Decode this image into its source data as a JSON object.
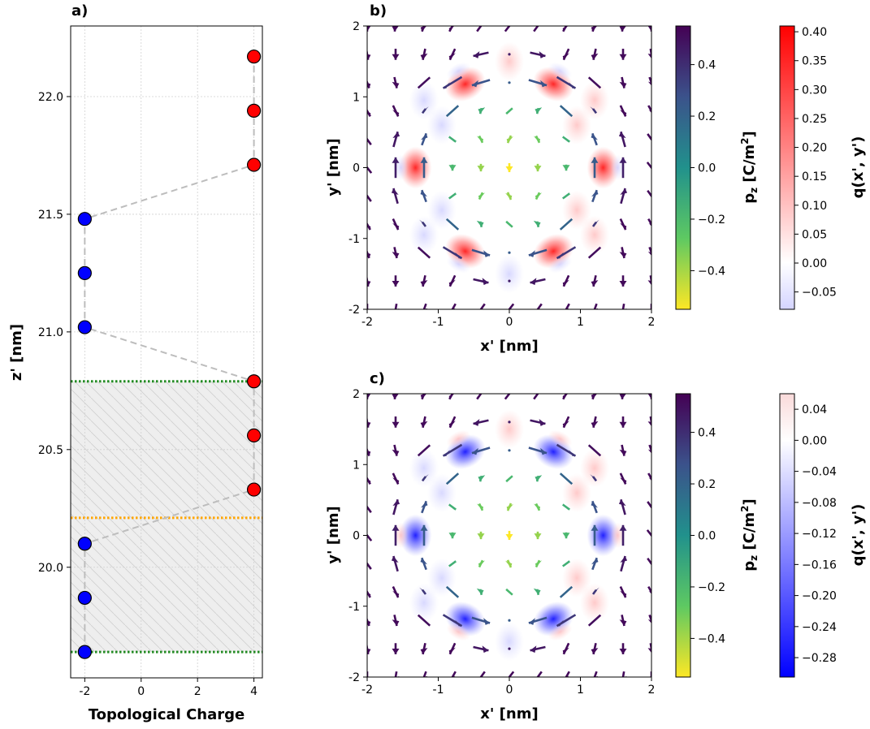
{
  "chart_data": [
    {
      "panel": "a)",
      "type": "scatter",
      "xlabel": "Topological Charge",
      "ylabel": "z' [nm]",
      "xlim": [
        -2.5,
        4.3
      ],
      "ylim": [
        19.53,
        22.3
      ],
      "xticks": [
        "-2",
        "0",
        "2",
        "4"
      ],
      "yticks": [
        "20.0",
        "20.5",
        "21.0",
        "21.5",
        "22.0"
      ],
      "grid": true,
      "points": [
        {
          "x": -2,
          "z": 19.64,
          "color": "#0000ff"
        },
        {
          "x": -2,
          "z": 19.87,
          "color": "#0000ff"
        },
        {
          "x": -2,
          "z": 20.1,
          "color": "#0000ff"
        },
        {
          "x": 4,
          "z": 20.33,
          "color": "#ff0000"
        },
        {
          "x": 4,
          "z": 20.56,
          "color": "#ff0000"
        },
        {
          "x": 4,
          "z": 20.79,
          "color": "#ff0000"
        },
        {
          "x": -2,
          "z": 21.02,
          "color": "#0000ff"
        },
        {
          "x": -2,
          "z": 21.25,
          "color": "#0000ff"
        },
        {
          "x": -2,
          "z": 21.48,
          "color": "#0000ff"
        },
        {
          "x": 4,
          "z": 21.71,
          "color": "#ff0000"
        },
        {
          "x": 4,
          "z": 21.94,
          "color": "#ff0000"
        },
        {
          "x": 4,
          "z": 22.17,
          "color": "#ff0000"
        }
      ],
      "hlines": [
        {
          "z": 20.79,
          "color": "#228b22",
          "style": "dotted"
        },
        {
          "z": 20.21,
          "color": "#ffa500",
          "style": "dotted"
        },
        {
          "z": 19.64,
          "color": "#228b22",
          "style": "dotted"
        }
      ],
      "shaded_region": [
        19.64,
        20.79
      ]
    },
    {
      "panel": "b)",
      "type": "heatmap",
      "xlabel": "x' [nm]",
      "ylabel": "y' [nm]",
      "xlim": [
        -2,
        2
      ],
      "ylim": [
        -2,
        2
      ],
      "xticks": [
        "-2",
        "-1",
        "0",
        "1",
        "2"
      ],
      "yticks": [
        "-2",
        "-1",
        "0",
        "1",
        "2"
      ],
      "quiver_colorbar": {
        "label": "p_z [C/m²]",
        "ticks": [
          "0.4",
          "0.2",
          "0.0",
          "−0.2",
          "−0.4"
        ],
        "range": [
          -0.55,
          0.55
        ]
      },
      "charge_colorbar": {
        "label": "q(x', y')",
        "ticks": [
          "0.40",
          "0.35",
          "0.30",
          "0.25",
          "0.20",
          "0.15",
          "0.10",
          "0.05",
          "0.00",
          "−0.05"
        ],
        "range": [
          -0.08,
          0.41
        ]
      },
      "features": [
        {
          "x": 0.62,
          "y": 1.18,
          "q": 0.4
        },
        {
          "x": -0.62,
          "y": 1.18,
          "q": 0.4
        },
        {
          "x": 1.32,
          "y": 0.0,
          "q": 0.4
        },
        {
          "x": -1.32,
          "y": 0.0,
          "q": 0.4
        },
        {
          "x": 0.62,
          "y": -1.18,
          "q": 0.4
        },
        {
          "x": -0.62,
          "y": -1.18,
          "q": 0.4
        }
      ]
    },
    {
      "panel": "c)",
      "type": "heatmap",
      "xlabel": "x' [nm]",
      "ylabel": "y' [nm]",
      "xlim": [
        -2,
        2
      ],
      "ylim": [
        -2,
        2
      ],
      "xticks": [
        "-2",
        "-1",
        "0",
        "1",
        "2"
      ],
      "yticks": [
        "-2",
        "-1",
        "0",
        "1",
        "2"
      ],
      "quiver_colorbar": {
        "label": "p_z [C/m²]",
        "ticks": [
          "0.4",
          "0.2",
          "0.0",
          "−0.2",
          "−0.4"
        ],
        "range": [
          -0.55,
          0.55
        ]
      },
      "charge_colorbar": {
        "label": "q(x', y')",
        "ticks": [
          "0.04",
          "0.00",
          "−0.04",
          "−0.08",
          "−0.12",
          "−0.16",
          "−0.20",
          "−0.24",
          "−0.28"
        ],
        "range": [
          -0.305,
          0.06
        ]
      },
      "features": [
        {
          "x": 0.62,
          "y": 1.18,
          "q": -0.3
        },
        {
          "x": -0.62,
          "y": 1.18,
          "q": -0.3
        },
        {
          "x": 1.32,
          "y": 0.0,
          "q": -0.3
        },
        {
          "x": -1.32,
          "y": 0.0,
          "q": -0.3
        },
        {
          "x": 0.62,
          "y": -1.18,
          "q": -0.3
        },
        {
          "x": -0.62,
          "y": -1.18,
          "q": -0.3
        }
      ]
    }
  ]
}
